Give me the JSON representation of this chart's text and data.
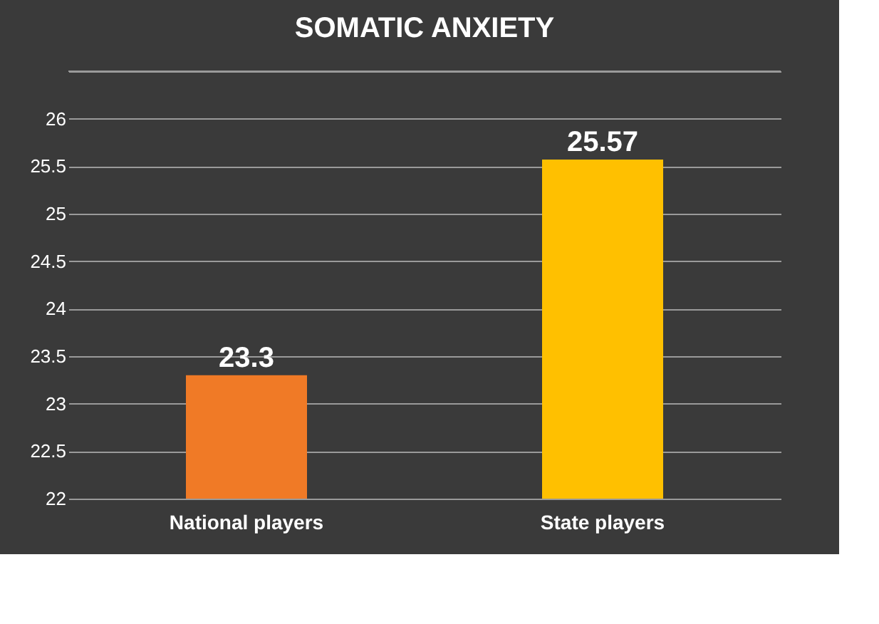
{
  "chart_data": {
    "type": "bar",
    "title": "SOMATIC ANXIETY",
    "categories": [
      "National players",
      "State players"
    ],
    "values": [
      23.3,
      25.57
    ],
    "colors": [
      "#f07a26",
      "#ffc000"
    ],
    "ylim": [
      22,
      26.5
    ],
    "yticks": [
      22,
      22.5,
      23,
      23.5,
      24,
      24.5,
      25,
      25.5,
      26,
      {
        "value": 26.5,
        "label": null
      }
    ],
    "grid": "y",
    "data_labels": true
  }
}
